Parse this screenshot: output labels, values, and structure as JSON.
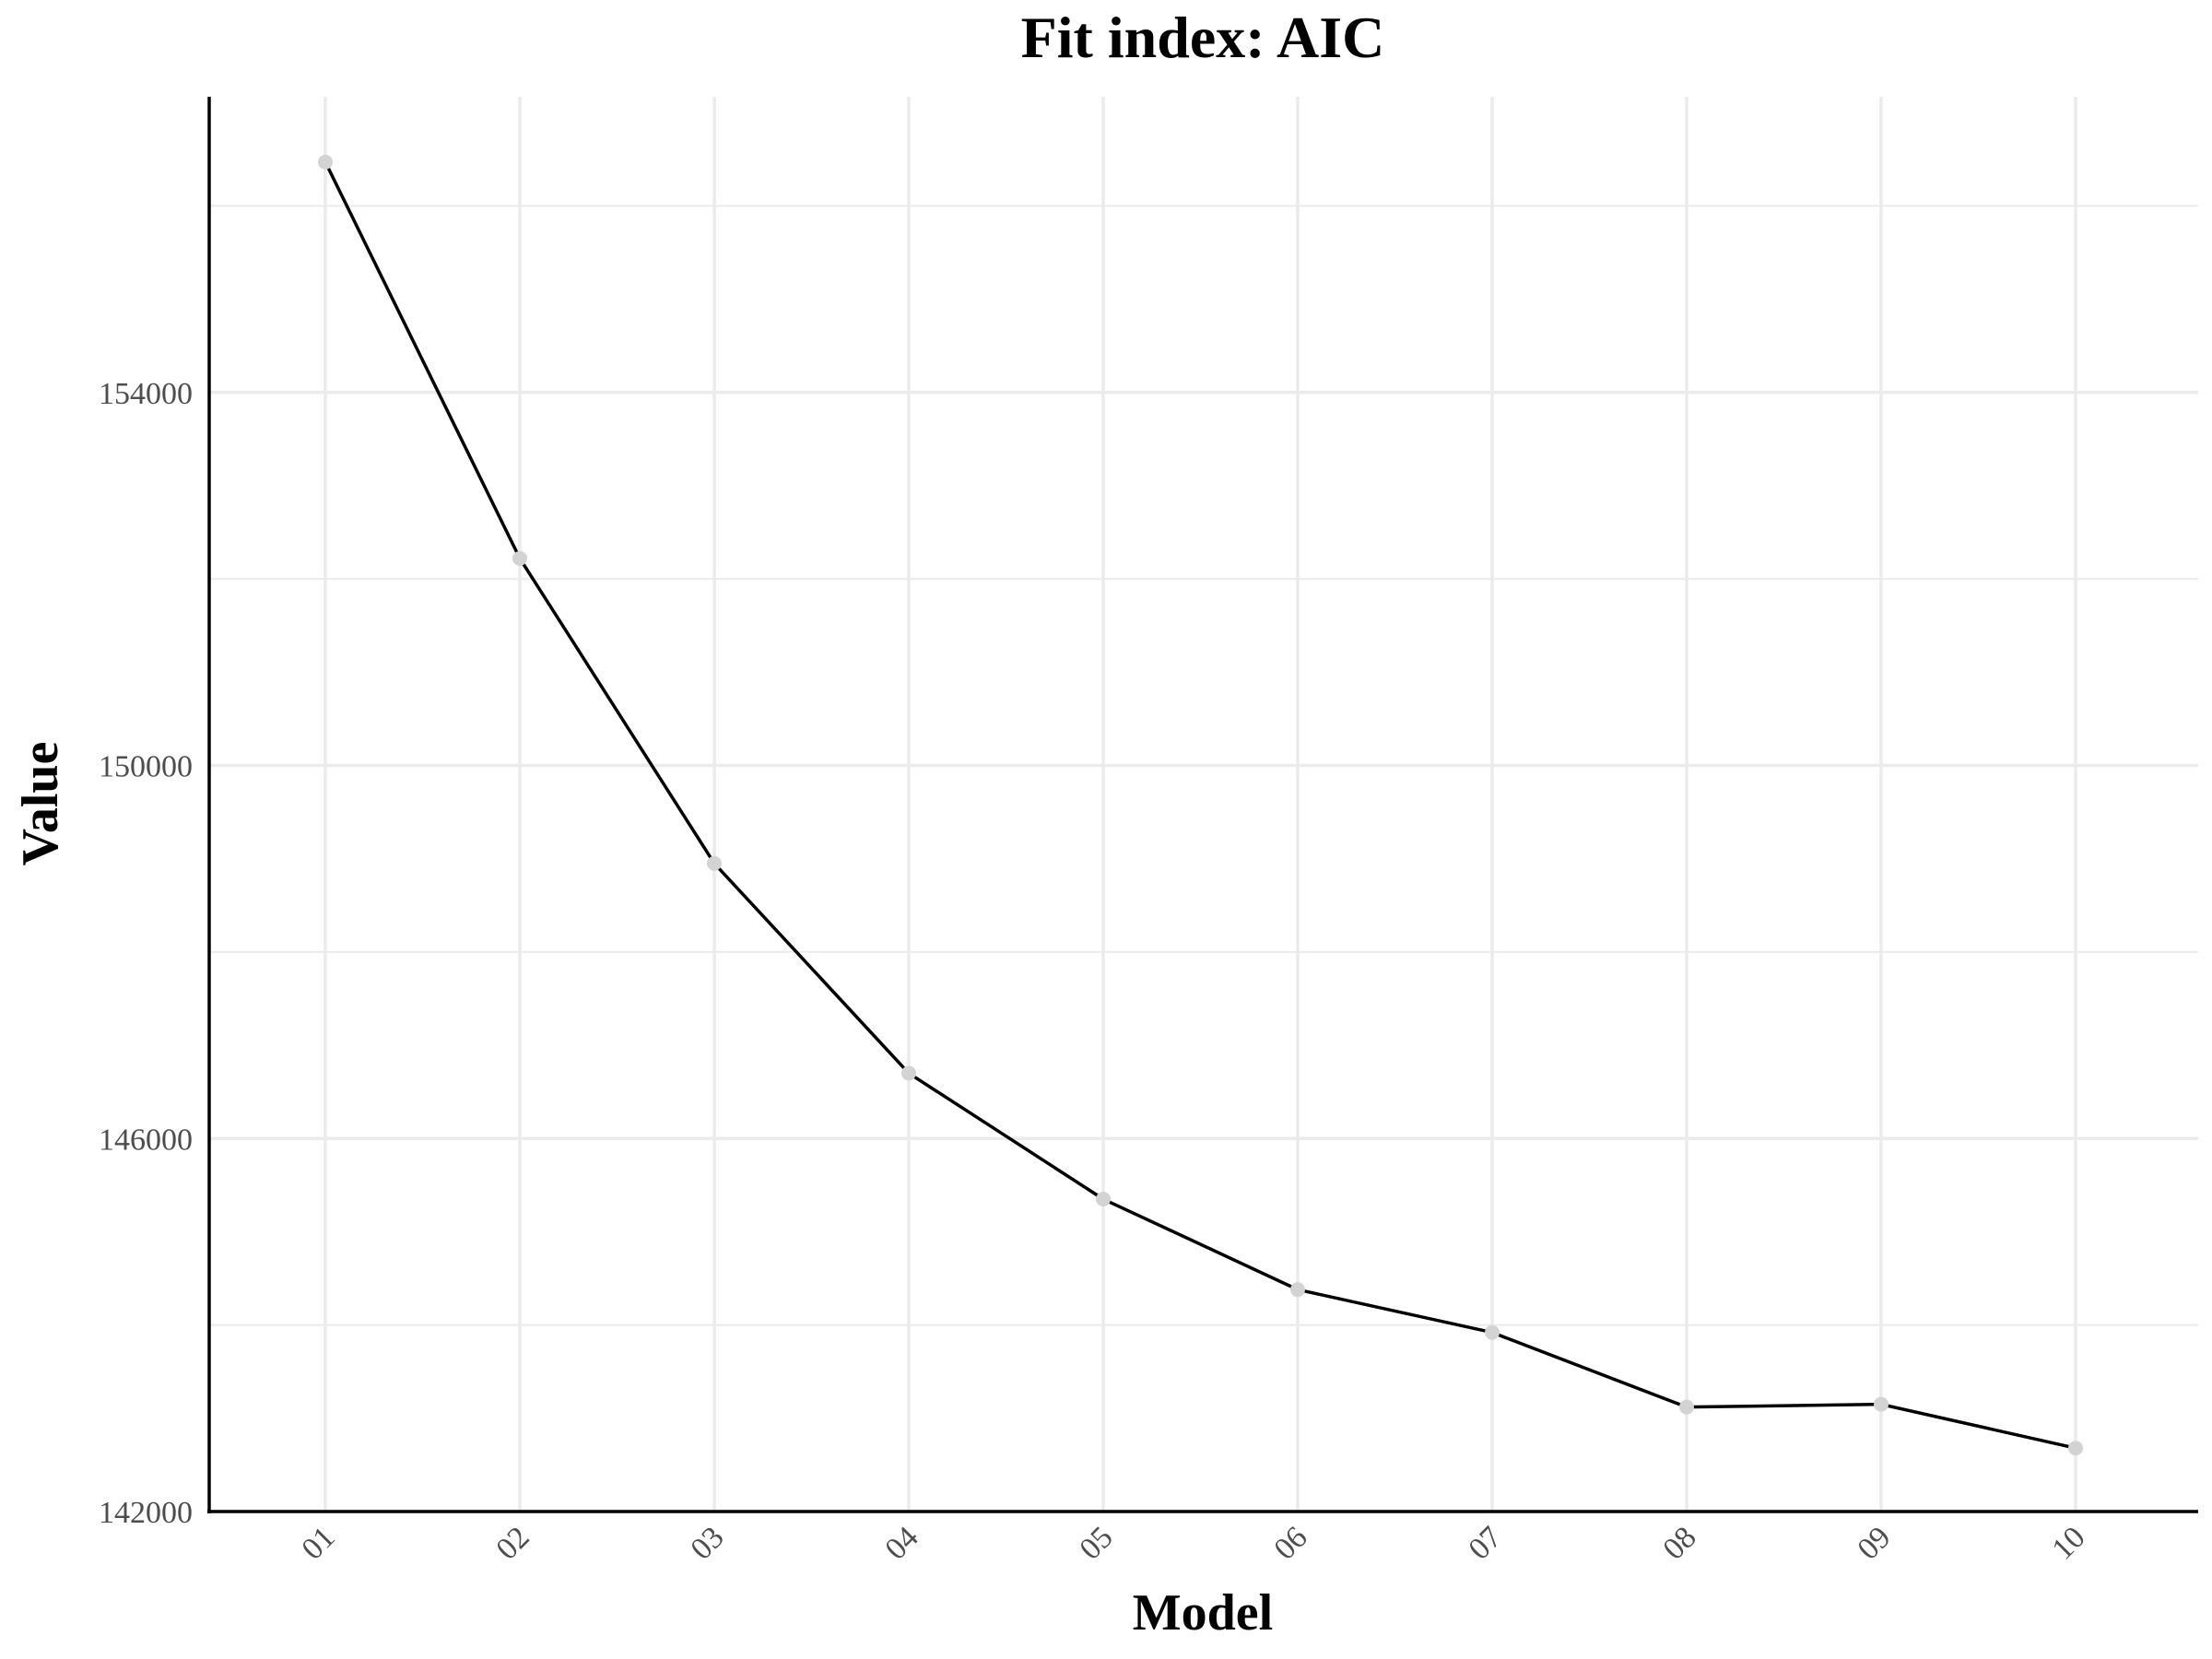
{
  "chart_data": {
    "type": "line",
    "title": "Fit index: AIC",
    "xlabel": "Model",
    "ylabel": "Value",
    "categories": [
      "01",
      "02",
      "03",
      "04",
      "05",
      "06",
      "07",
      "08",
      "09",
      "10"
    ],
    "values": [
      156470,
      152220,
      148950,
      146700,
      145350,
      144380,
      143920,
      143120,
      143150,
      142680
    ],
    "y_ticks": [
      142000,
      146000,
      150000,
      154000
    ],
    "y_tick_labels": [
      "142000",
      "146000",
      "150000",
      "154000"
    ],
    "ylim": [
      142000,
      157170
    ],
    "grid": true,
    "legend": "none",
    "colors": {
      "line": "#000000",
      "points": "#d3d3d3",
      "grid": "#ebebeb"
    }
  }
}
